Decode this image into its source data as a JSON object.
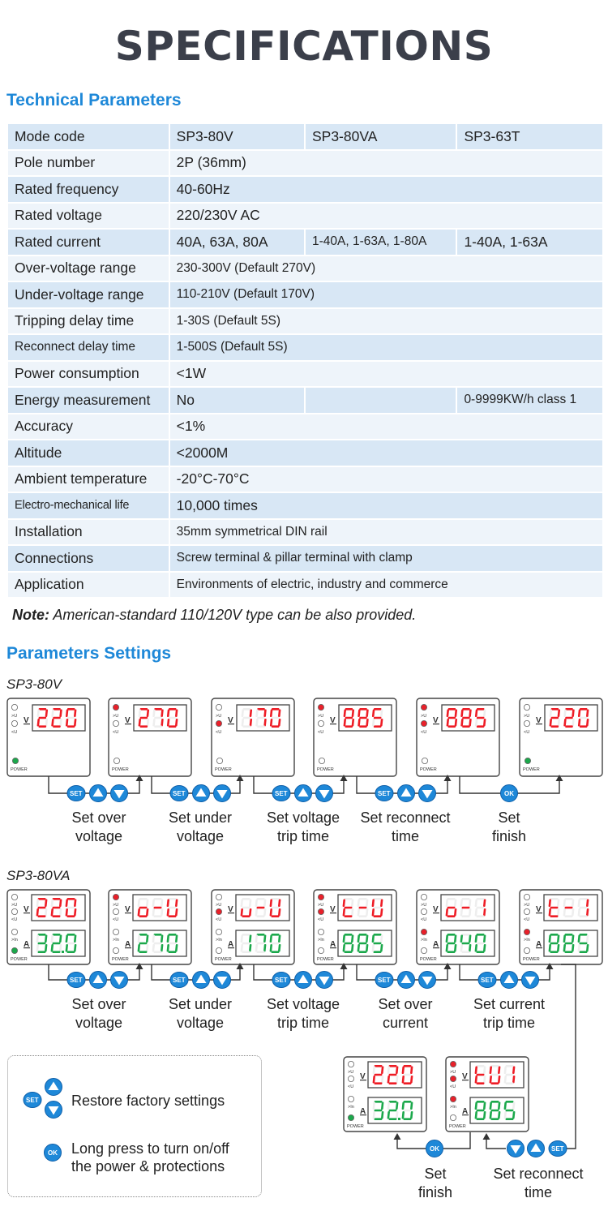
{
  "title": "SPECIFICATIONS",
  "tech_heading": "Technical Parameters",
  "table": [
    [
      "Mode code",
      "SP3-80V",
      "SP3-80VA",
      "SP3-63T"
    ],
    [
      "Pole number",
      "2P (36mm)"
    ],
    [
      "Rated frequency",
      "40-60Hz"
    ],
    [
      "Rated voltage",
      "220/230V AC"
    ],
    [
      "Rated current",
      "40A, 63A, 80A",
      "1-40A, 1-63A, 1-80A",
      "1-40A, 1-63A"
    ],
    [
      "Over-voltage range",
      "230-300V (Default 270V)"
    ],
    [
      "Under-voltage range",
      "110-210V (Default 170V)"
    ],
    [
      "Tripping delay time",
      "1-30S (Default 5S)"
    ],
    [
      "Reconnect delay time",
      "1-500S (Default 5S)"
    ],
    [
      "Power consumption",
      "<1W"
    ],
    [
      "Energy measurement",
      "No",
      "",
      "0-9999KW/h class 1"
    ],
    [
      "Accuracy",
      "<1%"
    ],
    [
      "Altitude",
      "<2000M"
    ],
    [
      "Ambient temperature",
      "-20°C-70°C"
    ],
    [
      "Electro-mechanical life",
      "10,000 times"
    ],
    [
      "Installation",
      "35mm symmetrical DIN rail"
    ],
    [
      "Connections",
      "Screw terminal & pillar terminal with clamp"
    ],
    [
      "Application",
      "Environments of electric, industry and commerce"
    ]
  ],
  "note_label": "Note:",
  "note_text": " American-standard 110/120V type can be also provided.",
  "settings_heading": "Parameters Settings",
  "model_a": "SP3-80V",
  "model_b": "SP3-80VA",
  "indicator_labels": {
    "over_u": ">U",
    "under_u": "<U",
    "over_i": ">In",
    "power": "POWER",
    "v": "V",
    "a": "A"
  },
  "buttons": {
    "set": "SET",
    "ok": "OK"
  },
  "row1": {
    "displays": [
      "220",
      "270",
      "170",
      "885",
      "885",
      "220"
    ],
    "captions": [
      [
        "Set over",
        "voltage"
      ],
      [
        "Set under",
        "voltage"
      ],
      [
        "Set voltage",
        "trip time"
      ],
      [
        "Set reconnect",
        "time"
      ],
      [
        "Set",
        "finish"
      ]
    ]
  },
  "row2": {
    "displays_top": [
      "220",
      "o-U",
      "u-U",
      "t-U",
      "o-1",
      "t-1"
    ],
    "displays_bottom": [
      "32.0",
      "270",
      "170",
      "885",
      "840",
      "885"
    ],
    "captions": [
      [
        "Set over",
        "voltage"
      ],
      [
        "Set under",
        "voltage"
      ],
      [
        "Set voltage",
        "trip time"
      ],
      [
        "Set over",
        "current"
      ],
      [
        "Set current",
        "trip time"
      ]
    ]
  },
  "row3": {
    "displays_top": [
      "220",
      "tU1"
    ],
    "displays_bottom": [
      "32.0",
      "885"
    ],
    "captions": [
      [
        "Set",
        "finish"
      ],
      [
        "Set reconnect",
        "time"
      ]
    ]
  },
  "legend": {
    "restore": "Restore factory settings",
    "long_press": [
      "Long press to turn on/off",
      "the power & protections"
    ]
  }
}
